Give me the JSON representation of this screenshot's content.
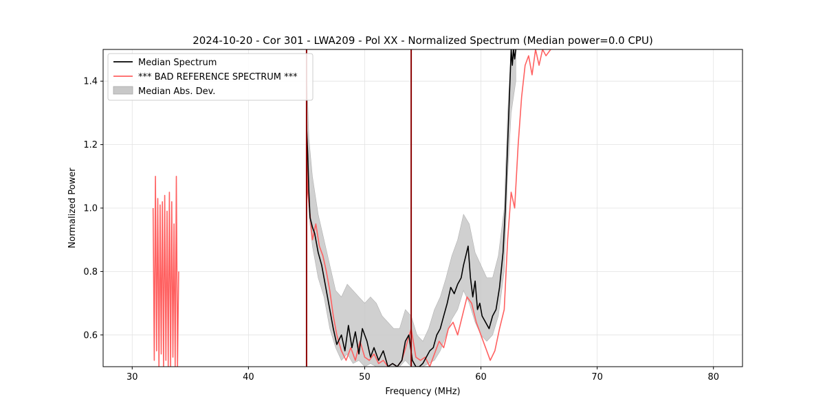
{
  "chart_data": {
    "type": "line",
    "title": "2024-10-20 - Cor 301 - LWA209 - Pol XX - Normalized Spectrum (Median power=0.0 CPU)",
    "xlabel": "Frequency (MHz)",
    "ylabel": "Normalized Power",
    "xlim": [
      27.5,
      82.5
    ],
    "ylim": [
      0.5,
      1.5
    ],
    "xticks": [
      30,
      40,
      50,
      60,
      70,
      80
    ],
    "yticks": [
      0.6,
      0.8,
      1.0,
      1.2,
      1.4
    ],
    "xtick_labels": [
      "30",
      "40",
      "50",
      "60",
      "70",
      "80"
    ],
    "ytick_labels": [
      "0.6",
      "0.8",
      "1.0",
      "1.2",
      "1.4"
    ],
    "grid": true,
    "legend_position": "top-left",
    "legend": [
      "Median Spectrum",
      "*** BAD REFERENCE SPECTRUM ***",
      "Median Abs. Dev."
    ],
    "colors": {
      "median": "#000000",
      "bad_reference": "#ff6060",
      "mad_band": "#c8c8c8",
      "spike": "#8b0000"
    },
    "series": [
      {
        "name": "Median Spectrum",
        "style": "line",
        "x": [
          45.0,
          45.1,
          45.2,
          45.3,
          45.5,
          45.7,
          46.0,
          46.3,
          46.6,
          47.0,
          47.3,
          47.6,
          48.0,
          48.3,
          48.6,
          48.9,
          49.2,
          49.5,
          49.8,
          50.2,
          50.5,
          50.8,
          51.2,
          51.6,
          52.0,
          52.4,
          52.8,
          53.2,
          53.5,
          53.8,
          54.1,
          54.4,
          54.7,
          55.0,
          55.3,
          55.6,
          55.9,
          56.2,
          56.5,
          56.8,
          57.1,
          57.4,
          57.7,
          58.0,
          58.3,
          58.5,
          58.7,
          58.9,
          59.1,
          59.3,
          59.5,
          59.7,
          59.9,
          60.1,
          60.4,
          60.7,
          61.0,
          61.3,
          61.6,
          61.9,
          62.1,
          62.2,
          62.3,
          62.4,
          62.5,
          62.6,
          62.7,
          62.8,
          62.9,
          63.0
        ],
        "y": [
          1.26,
          1.17,
          1.05,
          0.97,
          0.94,
          0.92,
          0.86,
          0.82,
          0.76,
          0.68,
          0.62,
          0.57,
          0.6,
          0.55,
          0.63,
          0.56,
          0.61,
          0.54,
          0.62,
          0.58,
          0.53,
          0.56,
          0.52,
          0.55,
          0.5,
          0.51,
          0.5,
          0.52,
          0.58,
          0.6,
          0.52,
          0.5,
          0.5,
          0.51,
          0.53,
          0.55,
          0.56,
          0.6,
          0.62,
          0.66,
          0.7,
          0.75,
          0.73,
          0.76,
          0.78,
          0.82,
          0.85,
          0.88,
          0.78,
          0.72,
          0.77,
          0.68,
          0.7,
          0.66,
          0.64,
          0.62,
          0.66,
          0.68,
          0.75,
          0.86,
          1.0,
          1.1,
          1.2,
          1.3,
          1.4,
          1.5,
          1.45,
          1.5,
          1.47,
          1.5
        ]
      },
      {
        "name": "*** BAD REFERENCE SPECTRUM ***",
        "style": "line",
        "segments": [
          {
            "x": [
              31.8,
              31.9,
              32.0,
              32.1,
              32.2,
              32.3,
              32.4,
              32.5,
              32.6,
              32.7,
              32.8,
              32.9,
              33.0,
              33.1,
              33.2,
              33.3,
              33.4,
              33.5,
              33.6,
              33.7,
              33.8,
              33.9,
              34.0
            ],
            "y": [
              1.0,
              0.52,
              1.1,
              0.55,
              1.03,
              0.5,
              1.01,
              0.54,
              1.02,
              0.5,
              1.04,
              0.52,
              0.99,
              0.5,
              1.05,
              0.5,
              1.02,
              0.53,
              0.95,
              0.5,
              1.1,
              0.5,
              0.8
            ]
          },
          {
            "x": [
              45.0,
              45.1,
              45.3,
              45.5,
              45.8,
              46.1,
              46.4,
              46.7,
              47.0,
              47.3,
              47.6,
              48.0,
              48.4,
              48.8,
              49.2,
              49.6,
              50.0,
              50.4,
              50.8,
              51.2,
              51.6,
              52.0,
              52.4,
              52.8,
              53.2,
              53.6,
              54.0,
              54.4,
              54.8,
              55.2,
              55.6,
              56.0,
              56.4,
              56.8,
              57.2,
              57.6,
              58.0,
              58.4,
              58.8,
              59.2,
              59.6,
              60.0,
              60.4,
              60.8,
              61.2,
              61.6,
              62.0,
              62.3,
              62.6,
              62.9,
              63.2,
              63.5,
              63.8,
              64.1,
              64.4,
              64.7,
              65.0,
              65.3,
              65.6,
              66.0
            ],
            "y": [
              1.18,
              1.05,
              0.98,
              0.9,
              0.95,
              0.88,
              0.85,
              0.8,
              0.74,
              0.66,
              0.6,
              0.55,
              0.52,
              0.56,
              0.52,
              0.58,
              0.53,
              0.52,
              0.54,
              0.51,
              0.52,
              0.5,
              0.51,
              0.5,
              0.52,
              0.57,
              0.62,
              0.53,
              0.52,
              0.53,
              0.5,
              0.54,
              0.58,
              0.56,
              0.62,
              0.64,
              0.6,
              0.66,
              0.72,
              0.7,
              0.64,
              0.6,
              0.56,
              0.52,
              0.55,
              0.62,
              0.68,
              0.9,
              1.05,
              1.0,
              1.2,
              1.35,
              1.45,
              1.48,
              1.42,
              1.5,
              1.45,
              1.5,
              1.48,
              1.5
            ]
          }
        ]
      },
      {
        "name": "Median Abs. Dev.",
        "style": "band",
        "x": [
          45.0,
          45.2,
          45.5,
          46.0,
          46.5,
          47.0,
          47.5,
          48.0,
          48.5,
          49.0,
          49.5,
          50.0,
          50.5,
          51.0,
          51.5,
          52.0,
          52.5,
          53.0,
          53.5,
          54.0,
          54.5,
          55.0,
          55.5,
          56.0,
          56.5,
          57.0,
          57.5,
          58.0,
          58.5,
          59.0,
          59.5,
          60.0,
          60.5,
          61.0,
          61.5,
          62.0,
          62.3,
          62.6,
          63.0
        ],
        "lower": [
          1.18,
          0.98,
          0.88,
          0.78,
          0.72,
          0.62,
          0.56,
          0.52,
          0.54,
          0.51,
          0.52,
          0.5,
          0.51,
          0.5,
          0.5,
          0.5,
          0.5,
          0.5,
          0.52,
          0.5,
          0.5,
          0.5,
          0.51,
          0.52,
          0.55,
          0.6,
          0.65,
          0.68,
          0.74,
          0.7,
          0.64,
          0.6,
          0.58,
          0.6,
          0.66,
          0.8,
          1.1,
          1.3,
          1.4
        ],
        "upper": [
          1.45,
          1.22,
          1.1,
          0.98,
          0.9,
          0.82,
          0.74,
          0.72,
          0.76,
          0.74,
          0.72,
          0.7,
          0.72,
          0.7,
          0.66,
          0.64,
          0.62,
          0.62,
          0.68,
          0.66,
          0.6,
          0.58,
          0.62,
          0.68,
          0.72,
          0.78,
          0.85,
          0.9,
          0.98,
          0.95,
          0.86,
          0.82,
          0.78,
          0.78,
          0.85,
          1.0,
          1.3,
          1.5,
          1.5
        ]
      },
      {
        "name": "",
        "style": "vline",
        "x": [
          45.0,
          54.0
        ]
      }
    ]
  }
}
